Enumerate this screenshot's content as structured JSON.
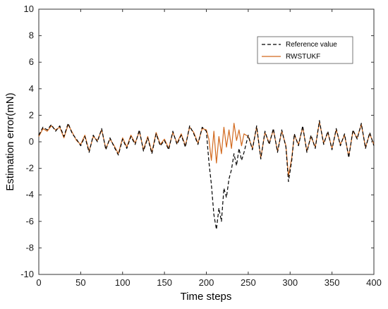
{
  "chart_data": {
    "type": "line",
    "xlabel": "Time steps",
    "ylabel": "Estimation error(mN)",
    "xlim": [
      0,
      400
    ],
    "ylim": [
      -10,
      10
    ],
    "xticks": [
      "0",
      "50",
      "100",
      "150",
      "200",
      "250",
      "300",
      "350",
      "400"
    ],
    "yticks": [
      "-10",
      "-8",
      "-6",
      "-4",
      "-2",
      "0",
      "2",
      "4",
      "6",
      "8",
      "10"
    ],
    "grid": false,
    "legend_position": "top-right",
    "series": [
      {
        "name": "Reference value",
        "color": "#000000",
        "style": "dashed",
        "x": [
          0,
          5,
          10,
          15,
          20,
          25,
          30,
          35,
          40,
          45,
          50,
          55,
          60,
          65,
          70,
          75,
          80,
          85,
          90,
          95,
          100,
          105,
          110,
          115,
          120,
          125,
          130,
          135,
          140,
          145,
          150,
          155,
          160,
          165,
          170,
          175,
          180,
          185,
          190,
          195,
          200,
          203,
          206,
          209,
          212,
          215,
          218,
          221,
          224,
          227,
          230,
          233,
          236,
          239,
          242,
          245,
          250,
          255,
          260,
          265,
          270,
          275,
          280,
          285,
          290,
          295,
          298,
          302,
          305,
          310,
          315,
          320,
          325,
          330,
          335,
          340,
          345,
          350,
          355,
          360,
          365,
          370,
          375,
          380,
          385,
          390,
          395,
          400
        ],
        "y": [
          0.5,
          1.1,
          0.9,
          1.3,
          0.8,
          1.2,
          0.4,
          1.4,
          0.6,
          0.2,
          -0.3,
          0.4,
          -0.8,
          0.5,
          0.0,
          1.0,
          -0.6,
          0.3,
          -0.4,
          -1.0,
          0.2,
          -0.5,
          0.4,
          -0.2,
          0.9,
          -0.7,
          0.3,
          -0.9,
          0.6,
          -0.3,
          0.1,
          -0.6,
          0.8,
          -0.2,
          0.5,
          -0.4,
          1.2,
          0.6,
          -0.2,
          1.1,
          0.8,
          -1.5,
          -3.2,
          -5.5,
          -6.6,
          -5.0,
          -6.0,
          -3.5,
          -4.2,
          -2.8,
          -2.1,
          -0.9,
          -1.8,
          -0.5,
          -1.4,
          -0.8,
          0.5,
          -0.6,
          1.2,
          -1.3,
          0.8,
          -0.2,
          1.0,
          -0.8,
          0.9,
          -0.4,
          -3.0,
          -1.4,
          0.6,
          -0.3,
          1.2,
          -0.8,
          0.5,
          -0.5,
          1.6,
          -0.2,
          0.8,
          -0.6,
          1.0,
          -0.3,
          0.6,
          -1.2,
          0.9,
          0.2,
          1.4,
          -0.5,
          0.7,
          -0.3
        ]
      },
      {
        "name": "RWSTUKF",
        "color": "#d2691e",
        "style": "solid",
        "x": [
          0,
          5,
          10,
          15,
          20,
          25,
          30,
          35,
          40,
          45,
          50,
          55,
          60,
          65,
          70,
          75,
          80,
          85,
          90,
          95,
          100,
          105,
          110,
          115,
          120,
          125,
          130,
          135,
          140,
          145,
          150,
          155,
          160,
          165,
          170,
          175,
          180,
          185,
          190,
          195,
          200,
          203,
          206,
          209,
          212,
          215,
          218,
          221,
          224,
          227,
          230,
          233,
          236,
          239,
          242,
          245,
          250,
          255,
          260,
          265,
          270,
          275,
          280,
          285,
          290,
          295,
          298,
          302,
          305,
          310,
          315,
          320,
          325,
          330,
          335,
          340,
          345,
          350,
          355,
          360,
          365,
          370,
          375,
          380,
          385,
          390,
          395,
          400
        ],
        "y": [
          0.4,
          1.0,
          0.8,
          1.2,
          0.9,
          1.1,
          0.3,
          1.3,
          0.7,
          0.1,
          -0.2,
          0.5,
          -0.7,
          0.4,
          0.1,
          0.9,
          -0.5,
          0.2,
          -0.3,
          -0.9,
          0.3,
          -0.4,
          0.5,
          -0.1,
          0.8,
          -0.6,
          0.4,
          -0.8,
          0.7,
          -0.2,
          0.2,
          -0.5,
          0.7,
          -0.1,
          0.6,
          -0.3,
          1.1,
          0.7,
          -0.1,
          1.0,
          0.9,
          0.2,
          -1.4,
          0.8,
          -1.6,
          0.4,
          -0.9,
          1.1,
          -0.4,
          0.9,
          -0.5,
          1.4,
          0.1,
          0.9,
          -0.3,
          0.6,
          0.4,
          -0.5,
          1.1,
          -1.2,
          0.7,
          -0.1,
          0.9,
          -0.7,
          0.8,
          -0.3,
          -2.6,
          -1.2,
          0.5,
          -0.2,
          1.1,
          -0.7,
          0.4,
          -0.4,
          1.5,
          -0.1,
          0.7,
          -0.5,
          0.9,
          -0.2,
          0.5,
          -1.1,
          0.8,
          0.3,
          1.3,
          -0.4,
          0.6,
          -0.2
        ]
      }
    ]
  }
}
